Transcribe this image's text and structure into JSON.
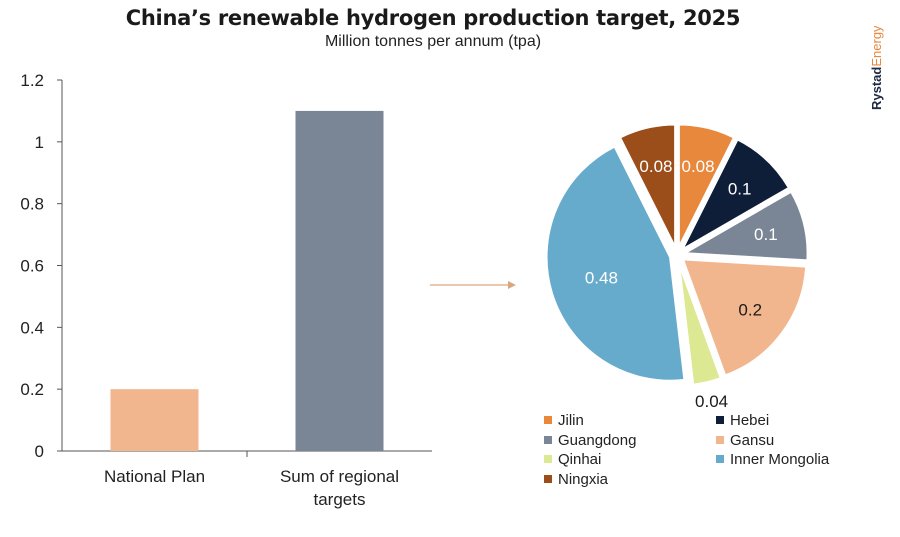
{
  "header": {
    "title": "China’s renewable hydrogen production target, 2025",
    "subtitle": "Million tonnes per annum (tpa)"
  },
  "brand": {
    "name_bold": "Rystad",
    "name_light": "Energy",
    "color": "#1e2a44",
    "accent": "#e8883c"
  },
  "colors": {
    "arrow": "#d9a77f",
    "axis": "#555555"
  },
  "chart_data": [
    {
      "type": "bar",
      "categories": [
        "National Plan",
        "Sum of regional targets"
      ],
      "category_lines": [
        [
          "National Plan"
        ],
        [
          "Sum of regional",
          "targets"
        ]
      ],
      "values": [
        0.2,
        1.1
      ],
      "colors": [
        "#f2b68e",
        "#7a8696"
      ],
      "ylim": [
        0,
        1.2
      ],
      "yticks": [
        0,
        0.2,
        0.4,
        0.6,
        0.8,
        1,
        1.2
      ],
      "ytick_labels": [
        "0",
        "0.2",
        "0.4",
        "0.6",
        "0.8",
        "1",
        "1.2"
      ],
      "grid": false,
      "xlabel": "",
      "ylabel": ""
    },
    {
      "type": "pie",
      "legend_placement": "bottom",
      "slices": [
        {
          "label": "Jilin",
          "value": 0.08,
          "text": "0.08",
          "color": "#e8883c",
          "text_color": "#ffffff"
        },
        {
          "label": "Hebei",
          "value": 0.1,
          "text": "0.1",
          "color": "#0e1d38",
          "text_color": "#ffffff"
        },
        {
          "label": "Guangdong",
          "value": 0.1,
          "text": "0.1",
          "color": "#7a8696",
          "text_color": "#ffffff"
        },
        {
          "label": "Gansu",
          "value": 0.2,
          "text": "0.2",
          "color": "#f2b68e",
          "text_color": "#1a1a1a"
        },
        {
          "label": "Qinhai",
          "value": 0.04,
          "text": "0.04",
          "color": "#dde892",
          "text_color": "#1a1a1a"
        },
        {
          "label": "Inner Mongolia",
          "value": 0.48,
          "text": "0.48",
          "color": "#67abcc",
          "text_color": "#ffffff"
        },
        {
          "label": "Ningxia",
          "value": 0.08,
          "text": "0.08",
          "color": "#9c4e1a",
          "text_color": "#ffffff"
        }
      ]
    }
  ]
}
